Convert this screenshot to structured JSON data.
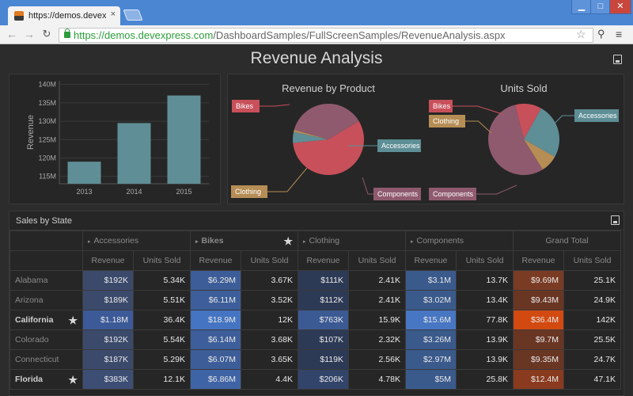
{
  "browser": {
    "tab_title": "https://demos.devexpress",
    "tab_close": "×",
    "url_host": "https://demos.devexpress.com",
    "url_path": "/DashboardSamples/FullScreenSamples/RevenueAnalysis.aspx",
    "win_min": "▁",
    "win_max": "□",
    "win_close": "✕",
    "back": "←",
    "forward": "→",
    "reload": "↻",
    "bookmark": "☆",
    "menu": "≡"
  },
  "dashboard": {
    "title": "Revenue Analysis",
    "grid_title": "Sales by State"
  },
  "chart_data": [
    {
      "type": "bar",
      "categories": [
        "2013",
        "2014",
        "2015"
      ],
      "values": [
        119,
        129.5,
        137
      ],
      "ylabel": "Revenue",
      "ylim": [
        113,
        141
      ],
      "yticks": [
        "115M",
        "120M",
        "125M",
        "130M",
        "135M",
        "140M"
      ],
      "ytick_values": [
        115,
        120,
        125,
        130,
        135,
        140
      ],
      "colors": {
        "bar": "#5f8e96"
      }
    },
    {
      "type": "pie",
      "title": "Revenue by Product",
      "labels": [
        "Bikes",
        "Accessories",
        "Clothing",
        "Components"
      ],
      "values": [
        57,
        5,
        1,
        37
      ],
      "colors": [
        "#c8505a",
        "#5e8e96",
        "#b58d55",
        "#8f5a6e"
      ]
    },
    {
      "type": "pie",
      "title": "Units Sold",
      "labels": [
        "Bikes",
        "Accessories",
        "Clothing",
        "Components"
      ],
      "values": [
        12,
        25,
        8,
        55
      ],
      "colors": [
        "#c8505a",
        "#5e8e96",
        "#b58d55",
        "#8f5a6e"
      ]
    }
  ],
  "grid": {
    "groups": [
      {
        "label": "Accessories",
        "bold": false,
        "star": false
      },
      {
        "label": "Bikes",
        "bold": true,
        "star": true
      },
      {
        "label": "Clothing",
        "bold": false,
        "star": false
      },
      {
        "label": "Components",
        "bold": false,
        "star": false
      }
    ],
    "grand_total": "Grand Total",
    "measures": [
      "Revenue",
      "Units Sold"
    ],
    "star_glyph": "★",
    "expand_glyph": "▸",
    "rows": [
      {
        "state": "Alabama",
        "bold": false,
        "star": false,
        "values": [
          "$192K",
          "5.34K",
          "$6.29M",
          "3.67K",
          "$111K",
          "2.41K",
          "$3.1M",
          "13.7K",
          "$9.69M",
          "25.1K"
        ]
      },
      {
        "state": "Arizona",
        "bold": false,
        "star": false,
        "values": [
          "$189K",
          "5.51K",
          "$6.11M",
          "3.52K",
          "$112K",
          "2.41K",
          "$3.02M",
          "13.4K",
          "$9.43M",
          "24.9K"
        ]
      },
      {
        "state": "California",
        "bold": true,
        "star": true,
        "values": [
          "$1.18M",
          "36.4K",
          "$18.9M",
          "12K",
          "$763K",
          "15.9K",
          "$15.6M",
          "77.8K",
          "$36.4M",
          "142K"
        ]
      },
      {
        "state": "Colorado",
        "bold": false,
        "star": false,
        "values": [
          "$192K",
          "5.54K",
          "$6.14M",
          "3.68K",
          "$107K",
          "2.32K",
          "$3.26M",
          "13.9K",
          "$9.7M",
          "25.5K"
        ]
      },
      {
        "state": "Connecticut",
        "bold": false,
        "star": false,
        "values": [
          "$187K",
          "5.29K",
          "$6.07M",
          "3.65K",
          "$119K",
          "2.56K",
          "$2.97M",
          "13.9K",
          "$9.35M",
          "24.7K"
        ]
      },
      {
        "state": "Florida",
        "bold": true,
        "star": true,
        "values": [
          "$383K",
          "12.1K",
          "$6.86M",
          "4.4K",
          "$206K",
          "4.78K",
          "$5M",
          "25.8K",
          "$12.4M",
          "47.1K"
        ]
      }
    ],
    "cell_colors": [
      [
        "#3b4a6b",
        "#3d5d98",
        "#2d3a55",
        "#3a5a8c",
        "#7a3b24"
      ],
      [
        "#3b4a6b",
        "#3d5e9a",
        "#2d3a55",
        "#3a5a8c",
        "#6a3624"
      ],
      [
        "#3c5a98",
        "#4474c2",
        "#3b5a94",
        "#4776c2",
        "#d24a10"
      ],
      [
        "#3b4a6b",
        "#3d5e9a",
        "#2d3a55",
        "#3a5a8c",
        "#6a3624"
      ],
      [
        "#3b4a6b",
        "#3d5d98",
        "#2d3a55",
        "#3a5a8c",
        "#6a3624"
      ],
      [
        "#3c4e74",
        "#3f64a6",
        "#33446a",
        "#3a5a8c",
        "#8a3a1e"
      ]
    ]
  }
}
